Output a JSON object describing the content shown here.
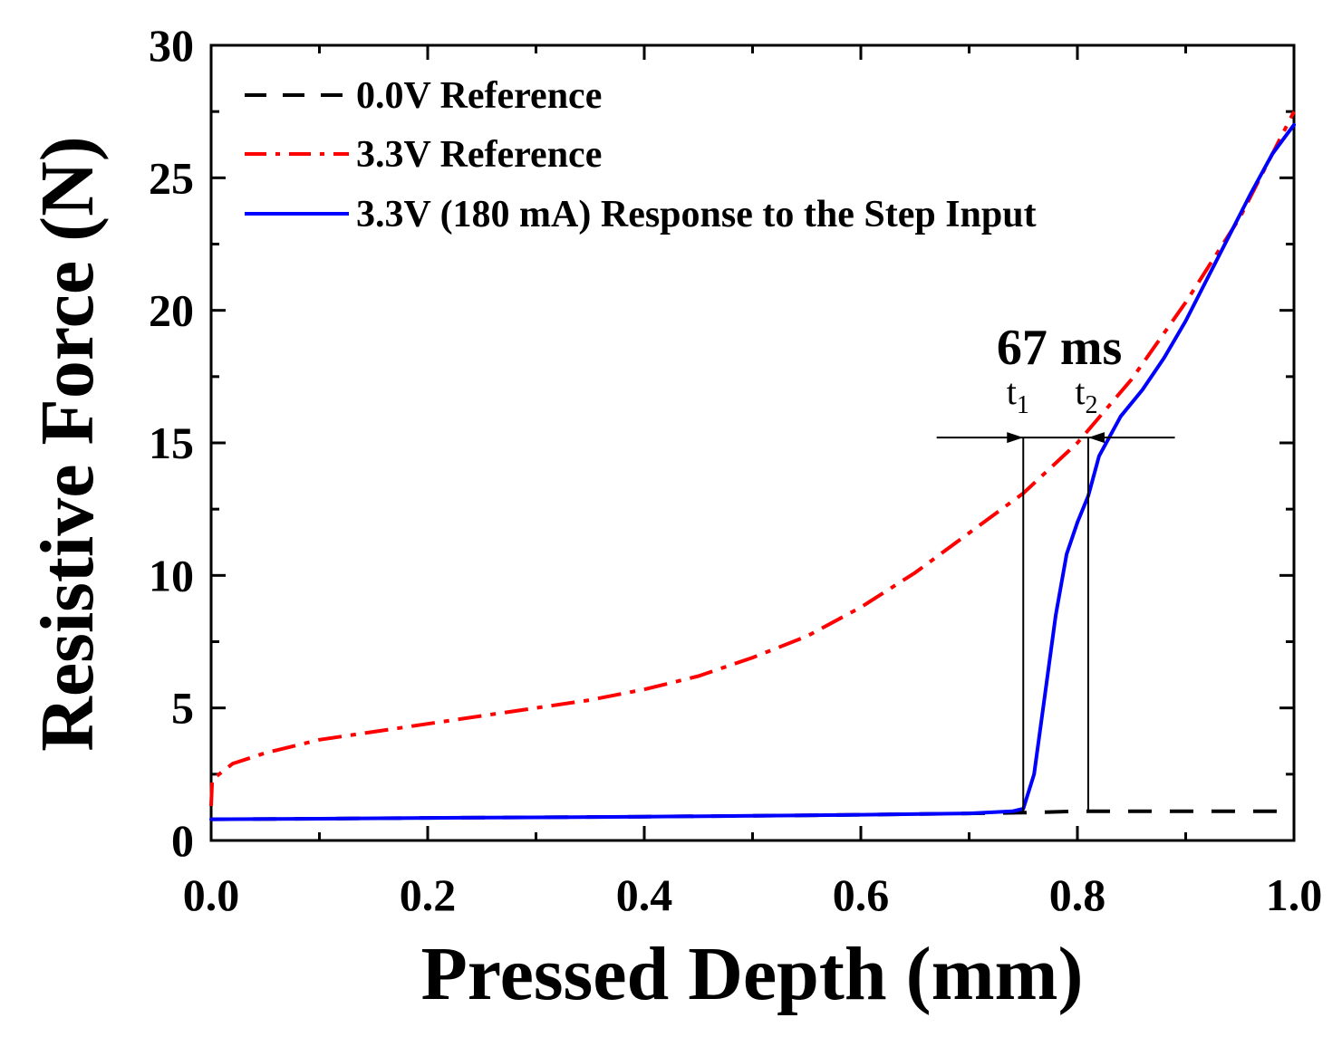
{
  "chart_data": {
    "type": "line",
    "xlabel": "Pressed Depth (mm)",
    "ylabel": "Resistive Force (N)",
    "xlim": [
      0.0,
      1.0
    ],
    "ylim": [
      0,
      30
    ],
    "x_ticks": [
      0.0,
      0.2,
      0.4,
      0.6,
      0.8,
      1.0
    ],
    "x_tick_labels": [
      "0.0",
      "0.2",
      "0.4",
      "0.6",
      "0.8",
      "1.0"
    ],
    "y_ticks": [
      0,
      5,
      10,
      15,
      20,
      25,
      30
    ],
    "y_tick_labels": [
      "0",
      "5",
      "10",
      "15",
      "20",
      "25",
      "30"
    ],
    "grid": false,
    "legend_position": "top-left",
    "series": [
      {
        "name": "0.0V Reference",
        "color": "#000000",
        "style": "dashed",
        "x": [
          0.0,
          0.1,
          0.2,
          0.3,
          0.4,
          0.5,
          0.6,
          0.7,
          0.75,
          0.8,
          0.9,
          1.0
        ],
        "y": [
          0.8,
          0.82,
          0.85,
          0.87,
          0.9,
          0.93,
          0.97,
          1.02,
          1.05,
          1.1,
          1.1,
          1.1
        ]
      },
      {
        "name": "3.3V Reference",
        "color": "#ff0000",
        "style": "dash-dot",
        "x": [
          0.0,
          0.001,
          0.02,
          0.05,
          0.1,
          0.15,
          0.2,
          0.25,
          0.3,
          0.35,
          0.4,
          0.45,
          0.5,
          0.55,
          0.6,
          0.65,
          0.7,
          0.75,
          0.8,
          0.85,
          0.9,
          0.95,
          1.0
        ],
        "y": [
          1.3,
          2.3,
          2.9,
          3.3,
          3.8,
          4.1,
          4.4,
          4.7,
          5.0,
          5.3,
          5.7,
          6.2,
          6.9,
          7.7,
          8.8,
          10.1,
          11.6,
          13.1,
          15.0,
          17.4,
          20.3,
          23.5,
          27.5
        ]
      },
      {
        "name": "3.3V (180 mA) Response to the Step Input",
        "color": "#0000ff",
        "style": "solid",
        "x": [
          0.0,
          0.1,
          0.2,
          0.3,
          0.4,
          0.5,
          0.6,
          0.7,
          0.74,
          0.75,
          0.76,
          0.77,
          0.78,
          0.79,
          0.8,
          0.81,
          0.82,
          0.84,
          0.86,
          0.88,
          0.9,
          0.92,
          0.94,
          0.96,
          0.98,
          1.0
        ],
        "y": [
          0.8,
          0.82,
          0.85,
          0.87,
          0.9,
          0.93,
          0.97,
          1.02,
          1.1,
          1.2,
          2.5,
          5.5,
          8.5,
          10.8,
          12.0,
          13.0,
          14.5,
          16.0,
          17.0,
          18.2,
          19.6,
          21.2,
          22.8,
          24.4,
          25.9,
          27.0
        ]
      }
    ],
    "annotations": {
      "delay_label": "67 ms",
      "t1_label": "t",
      "t1_sub": "1",
      "t2_label": "t",
      "t2_sub": "2",
      "t1_x": 0.75,
      "t2_x": 0.81,
      "level_y": 15.2,
      "bracket_x_start": 0.67,
      "bracket_x_end": 0.89
    }
  }
}
